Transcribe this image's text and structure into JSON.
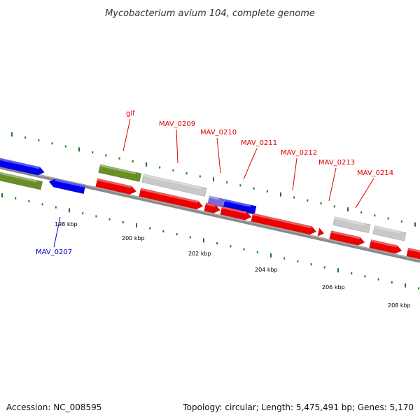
{
  "title": "Mycobacterium avium 104, complete genome",
  "footer": {
    "accession": "Accession: NC_008595",
    "summary": "Topology: circular; Length: 5,475,491 bp; Genes: 5,170"
  },
  "colors": {
    "backbone": "#8a8a8a",
    "tick": "#1a7a1a",
    "cds_red": "#ee0000",
    "cds_blue": "#0000ee",
    "gene_olive": "#6b8e23",
    "gene_gray": "#c8c8c8",
    "gene_purple": "#7a6ad8",
    "label_red": "#dd0000",
    "label_blue": "#0000cc"
  },
  "scale_labels": [
    "198 kbp",
    "200 kbp",
    "202 kbp",
    "204 kbp",
    "206 kbp",
    "208 kbp"
  ],
  "gene_labels": [
    {
      "text": "glf",
      "color": "label_red"
    },
    {
      "text": "MAV_0209",
      "color": "label_red"
    },
    {
      "text": "MAV_0210",
      "color": "label_red"
    },
    {
      "text": "MAV_0211",
      "color": "label_red"
    },
    {
      "text": "MAV_0212",
      "color": "label_red"
    },
    {
      "text": "MAV_0213",
      "color": "label_red"
    },
    {
      "text": "MAV_0214",
      "color": "label_red"
    },
    {
      "text": "MAV_0207",
      "color": "label_blue"
    }
  ]
}
